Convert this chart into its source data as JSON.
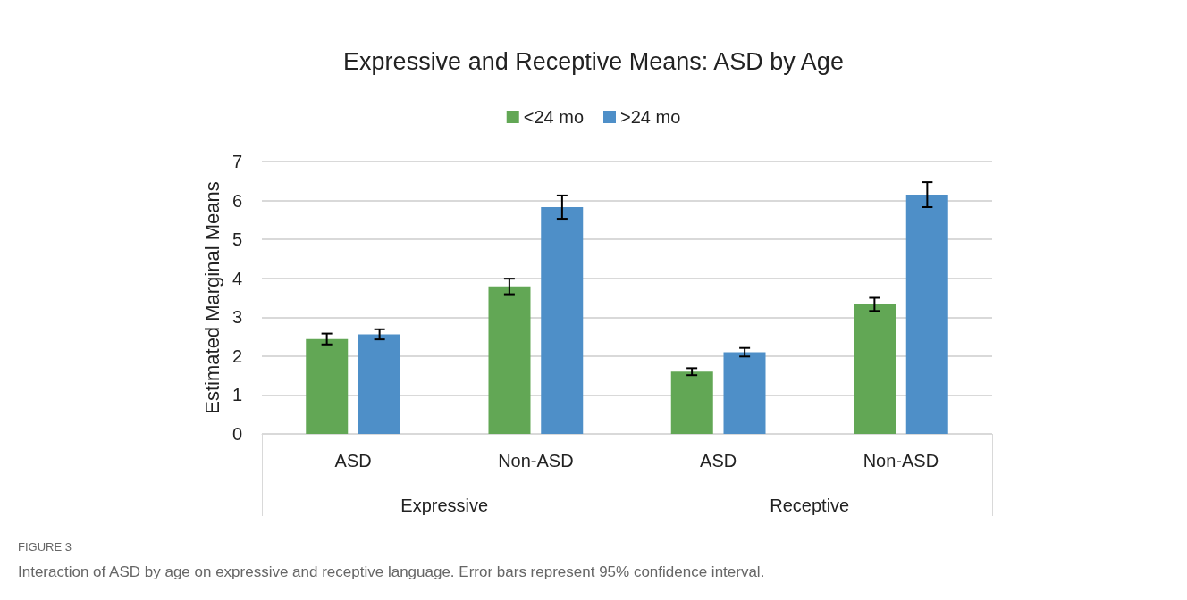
{
  "chart_data": {
    "type": "bar",
    "title": "Expressive and Receptive Means: ASD by Age",
    "ylabel": "Estimated Marginal Means",
    "categories": [
      "ASD",
      "Non-ASD",
      "ASD",
      "Non-ASD"
    ],
    "series": [
      {
        "name": "<24 mo",
        "color": "#62a755",
        "values": [
          2.44,
          3.79,
          1.6,
          3.33
        ],
        "errors": [
          0.14,
          0.2,
          0.09,
          0.17
        ]
      },
      {
        "name": ">24 mo",
        "color": "#4e8fc8",
        "values": [
          2.56,
          5.83,
          2.1,
          6.15
        ],
        "errors": [
          0.13,
          0.3,
          0.11,
          0.32
        ]
      }
    ],
    "ylim": [
      0,
      7
    ],
    "yticks": [
      0,
      1,
      2,
      3,
      4,
      5,
      6,
      7
    ],
    "grid": "y",
    "legend": "top",
    "annotations": [
      "Expressive",
      "Receptive",
      "FIGURE 3",
      "Interaction of ASD by age on expressive and receptive language. Error bars represent 95% confidence interval."
    ]
  }
}
